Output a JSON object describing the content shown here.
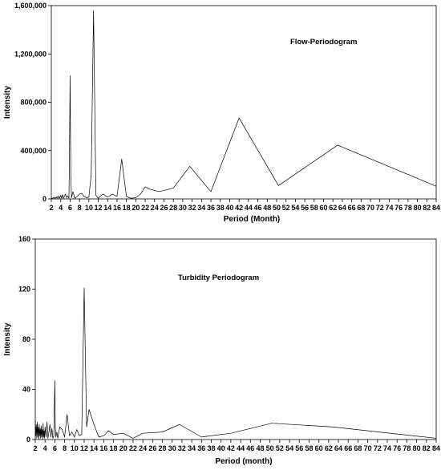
{
  "chart_data": [
    {
      "type": "line",
      "title": "Flow-Periodogram",
      "xlabel": "Period (Month)",
      "ylabel": "Intensity",
      "xlim": [
        2,
        84
      ],
      "ylim": [
        0,
        1600000
      ],
      "xticks": [
        2,
        4,
        6,
        8,
        10,
        12,
        14,
        16,
        18,
        20,
        22,
        24,
        26,
        28,
        30,
        32,
        34,
        36,
        38,
        40,
        42,
        44,
        46,
        48,
        50,
        52,
        54,
        56,
        58,
        60,
        62,
        64,
        66,
        68,
        70,
        72,
        74,
        76,
        78,
        80,
        82,
        84
      ],
      "yticks": [
        0,
        400000,
        800000,
        1200000,
        1600000
      ],
      "ytick_labels": [
        "0",
        "400,000",
        "800,000",
        "1,200,000",
        "1,600,000"
      ],
      "grid": false,
      "series": [
        {
          "x": [
            2.0,
            2.2,
            2.4,
            2.6,
            2.8,
            3.0,
            3.2,
            3.4,
            3.6,
            3.8,
            4.0,
            4.2,
            4.4,
            4.6,
            4.8,
            5.0,
            5.25,
            5.5,
            5.75,
            5.85,
            6.0,
            6.15,
            6.3,
            6.6,
            7.0,
            7.5,
            8.0,
            8.5,
            9.0,
            9.5,
            10.0,
            10.5,
            11.0,
            11.5,
            12.0,
            12.5,
            13.0,
            14.0,
            15.0,
            16.0,
            17.0,
            18.0,
            19.0,
            20.0,
            21.0,
            22.0,
            23.0,
            25.0,
            28.0,
            31.5,
            36.0,
            42.0,
            50.4,
            63.0,
            84.0
          ],
          "y": [
            8000,
            3000,
            12000,
            2000,
            15000,
            5000,
            20000,
            4000,
            25000,
            6000,
            30000,
            5000,
            35000,
            6000,
            20000,
            40000,
            10000,
            25000,
            5000,
            300000,
            1020000,
            200000,
            10000,
            60000,
            5000,
            20000,
            40000,
            45000,
            20000,
            10000,
            15000,
            200000,
            1560000,
            30000,
            5000,
            25000,
            40000,
            15000,
            40000,
            20000,
            330000,
            20000,
            5000,
            10000,
            40000,
            100000,
            80000,
            60000,
            90000,
            270000,
            60000,
            670000,
            110000,
            445000,
            105000
          ]
        }
      ]
    },
    {
      "type": "line",
      "title": "Turbidity Periodogram",
      "xlabel": "Period (month)",
      "ylabel": "Intensity",
      "xlim": [
        2,
        84
      ],
      "ylim": [
        0,
        160
      ],
      "xticks": [
        2,
        4,
        6,
        8,
        10,
        12,
        14,
        16,
        18,
        20,
        22,
        24,
        26,
        28,
        30,
        32,
        34,
        36,
        38,
        40,
        42,
        44,
        46,
        48,
        50,
        52,
        54,
        56,
        58,
        60,
        62,
        64,
        66,
        68,
        70,
        72,
        74,
        76,
        78,
        80,
        82,
        84
      ],
      "yticks": [
        0,
        40,
        80,
        120,
        160
      ],
      "ytick_labels": [
        "0",
        "40",
        "80",
        "120",
        "160"
      ],
      "grid": false,
      "series": [
        {
          "x": [
            2.0,
            2.1,
            2.2,
            2.3,
            2.4,
            2.5,
            2.6,
            2.7,
            2.8,
            2.9,
            3.0,
            3.1,
            3.2,
            3.3,
            3.4,
            3.5,
            3.6,
            3.7,
            3.8,
            3.9,
            4.0,
            4.2,
            4.4,
            4.6,
            4.8,
            5.0,
            5.2,
            5.4,
            5.6,
            5.8,
            6.0,
            6.1,
            6.2,
            6.4,
            6.6,
            7.0,
            7.5,
            8.0,
            8.5,
            9.0,
            9.5,
            10.0,
            10.5,
            11.0,
            11.5,
            12.0,
            12.5,
            13.0,
            14.0,
            15.0,
            16.0,
            17.0,
            18.0,
            20.0,
            22.0,
            24.0,
            28.0,
            31.5,
            36.0,
            42.0,
            50.4,
            63.0,
            84.0
          ],
          "y": [
            15,
            3,
            12,
            1,
            14,
            2,
            10,
            0,
            12,
            3,
            9,
            1,
            11,
            2,
            8,
            0,
            13,
            2,
            7,
            1,
            10,
            2,
            14,
            1,
            6,
            12,
            2,
            9,
            1,
            3,
            47,
            10,
            2,
            6,
            1,
            10,
            8,
            2,
            20,
            3,
            6,
            2,
            8,
            3,
            4,
            121,
            10,
            24,
            12,
            2,
            3,
            7,
            4,
            5,
            1,
            5,
            6,
            12,
            2,
            5,
            13,
            10,
            1
          ]
        }
      ]
    }
  ]
}
